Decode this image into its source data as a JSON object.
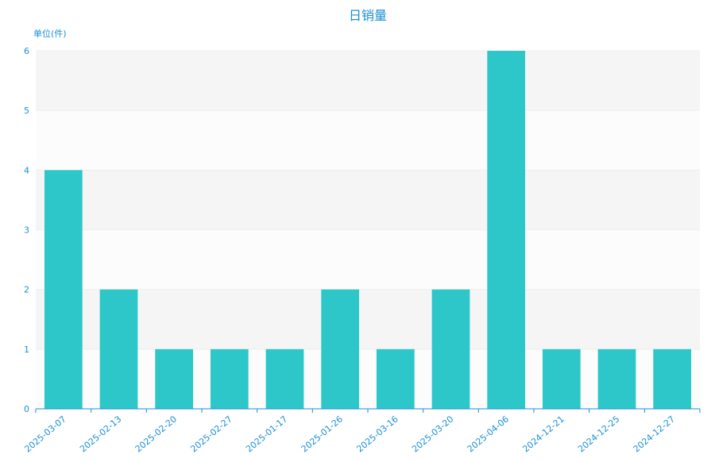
{
  "chart_data": {
    "type": "bar",
    "title": "日销量",
    "ylabel": "单位(件)",
    "xlabel": "",
    "categories": [
      "2025-03-07",
      "2025-02-13",
      "2025-02-20",
      "2025-02-27",
      "2025-01-17",
      "2025-01-26",
      "2025-03-16",
      "2025-03-20",
      "2025-04-06",
      "2024-12-21",
      "2024-12-25",
      "2024-12-27"
    ],
    "values": [
      4,
      2,
      1,
      1,
      1,
      2,
      1,
      2,
      6,
      1,
      1,
      1
    ],
    "ylim": [
      0,
      6
    ],
    "yticks": [
      "0",
      "1",
      "2",
      "3",
      "4",
      "5",
      "6"
    ],
    "grid": true,
    "colors": {
      "bar": "#2ec7c9",
      "text": "#1a8fd6",
      "axis": "#1a8fd6",
      "band_light": "#fcfcfc",
      "band_dark": "#f5f5f5",
      "gridline": "#eeeeee"
    }
  }
}
